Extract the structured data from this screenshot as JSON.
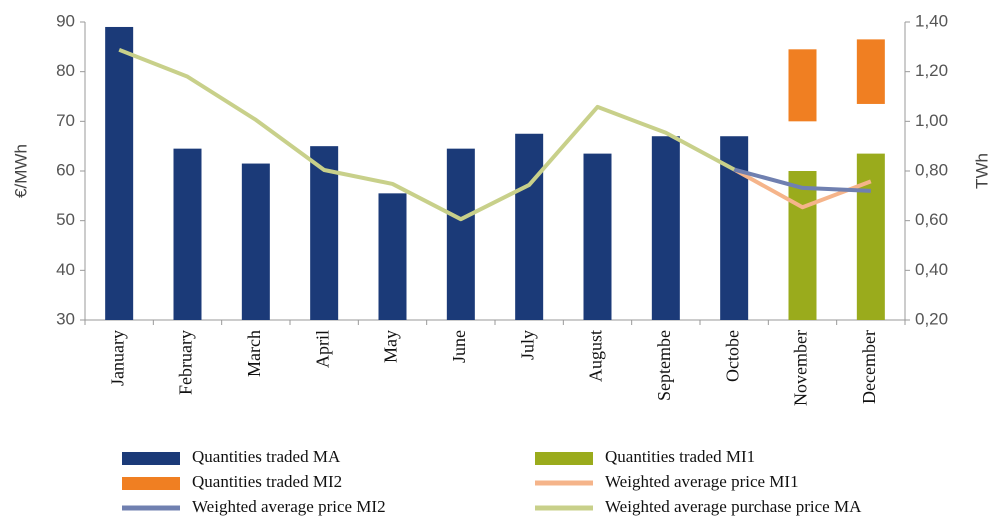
{
  "chart_data": {
    "type": "bar",
    "y_label": "€/MWh",
    "y2_label": "TWh",
    "categories": [
      "January",
      "February",
      "March",
      "April",
      "May",
      "June",
      "July",
      "August",
      "Septembe",
      "Octobe",
      "November",
      "December"
    ],
    "ylim": [
      30,
      90
    ],
    "yticks": [
      30,
      40,
      50,
      60,
      70,
      80,
      90
    ],
    "y2lim": [
      0.2,
      1.4
    ],
    "y2ticks": [
      {
        "value": 0.2,
        "label": "0,20"
      },
      {
        "value": 0.4,
        "label": "0,40"
      },
      {
        "value": 0.6,
        "label": "0,60"
      },
      {
        "value": 0.8,
        "label": "0,80"
      },
      {
        "value": 1.0,
        "label": "1,00"
      },
      {
        "value": 1.2,
        "label": "1,20"
      },
      {
        "value": 1.4,
        "label": "1,40"
      }
    ],
    "series": [
      {
        "name": "Quantities traded  MA",
        "type": "bar",
        "axis": "y2",
        "color": "#1b3a78",
        "values": [
          1.38,
          0.89,
          0.83,
          0.9,
          0.71,
          0.89,
          0.95,
          0.87,
          0.94,
          0.94,
          null,
          null
        ]
      },
      {
        "name": "Quantities traded  MI1",
        "type": "bar",
        "axis": "y2",
        "color": "#9aab1c",
        "values": [
          null,
          null,
          null,
          null,
          null,
          null,
          null,
          null,
          null,
          null,
          0.8,
          0.87
        ]
      },
      {
        "name": "Quantities traded  MI2",
        "type": "bar",
        "axis": "y2",
        "color": "#f07f22",
        "values": [
          null,
          null,
          null,
          null,
          null,
          null,
          null,
          null,
          null,
          null,
          0.49,
          0.46
        ]
      },
      {
        "name": "Weighted average price MI1",
        "type": "line",
        "color": "#f5b48a",
        "values": [
          null,
          null,
          null,
          null,
          null,
          null,
          null,
          null,
          null,
          60.3,
          52.7,
          57.9
        ]
      },
      {
        "name": "Weighted average price MI2",
        "type": "line",
        "color": "#7080b0",
        "values": [
          null,
          null,
          null,
          null,
          null,
          null,
          null,
          null,
          null,
          60.3,
          56.6,
          56.0
        ]
      },
      {
        "name": "Weighted average purchase price MA",
        "type": "line",
        "color": "#c8d08a",
        "values": [
          84.4,
          79.0,
          70.3,
          60.2,
          57.4,
          50.3,
          57.2,
          72.9,
          67.7,
          60.3,
          null,
          null
        ]
      }
    ]
  }
}
